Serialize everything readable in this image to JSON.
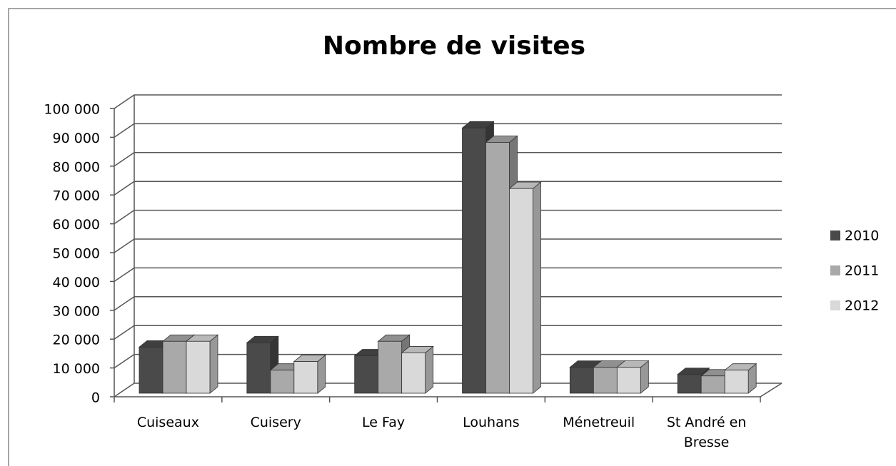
{
  "chart_data": {
    "type": "bar3d",
    "title": "Nombre de visites",
    "categories": [
      "Cuiseaux",
      "Cuisery",
      "Le Fay",
      "Louhans",
      "Ménetreuil",
      "St André en Bresse"
    ],
    "series": [
      {
        "name": "2010",
        "color": "#4a4a4a",
        "values": [
          16000,
          17500,
          13000,
          92000,
          9000,
          6500
        ]
      },
      {
        "name": "2011",
        "color": "#a9a9a9",
        "values": [
          18000,
          8000,
          18000,
          87000,
          9000,
          6000
        ]
      },
      {
        "name": "2012",
        "color": "#d9d9d9",
        "values": [
          18000,
          11000,
          14000,
          71000,
          9000,
          8000
        ]
      }
    ],
    "ylim": [
      0,
      100000
    ],
    "yticks": [
      0,
      {
        "value": 10000,
        "label": "10 000"
      },
      {
        "value": 20000,
        "label": "20 000"
      },
      {
        "value": 30000,
        "label": "30 000"
      },
      {
        "value": 40000,
        "label": "40 000"
      },
      {
        "value": 50000,
        "label": "50 000"
      },
      {
        "value": 60000,
        "label": "60 000"
      },
      {
        "value": 70000,
        "label": "70 000"
      },
      {
        "value": 80000,
        "label": "80 000"
      },
      {
        "value": 90000,
        "label": "90 000"
      },
      {
        "value": 100000,
        "label": "100 000"
      }
    ],
    "grid": true,
    "legend": "right"
  }
}
